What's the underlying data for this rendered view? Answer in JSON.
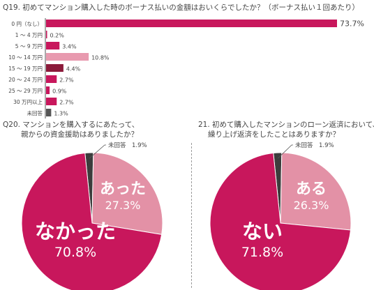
{
  "chart_data": [
    {
      "type": "bar",
      "orientation": "horizontal",
      "title": "Q19. 初めてマンション購入した時のボーナス払いの金額はおいくらでしたか？（ボーナス払い１回あたり）",
      "categories": [
        "0 円（なし）",
        "1 ～ 4 万円",
        "5 ～ 9 万円",
        "10 ～ 14 万円",
        "15 ～ 19 万円",
        "20 ～ 24 万円",
        "25 ～ 29 万円",
        "30 万円以上",
        "未回答"
      ],
      "values": [
        73.7,
        0.2,
        3.4,
        10.8,
        4.4,
        2.7,
        0.9,
        2.7,
        1.3
      ],
      "value_labels": [
        "73.7%",
        "0.2%",
        "3.4%",
        "10.8%",
        "4.4%",
        "2.7%",
        "0.9%",
        "2.7%",
        "1.3%"
      ],
      "bar_colors": [
        "#c8175c",
        "#c8175c",
        "#c8175c",
        "#e89aaf",
        "#8b1a3a",
        "#c8175c",
        "#c8175c",
        "#c8175c",
        "#555555"
      ],
      "xlim": [
        0,
        73.7
      ],
      "grid": false
    },
    {
      "type": "pie",
      "title": "Q20. マンションを購入するにあたって、親からの資金援助はありましたか？",
      "labels": [
        "なかった",
        "あった",
        "未回答"
      ],
      "values": [
        70.8,
        27.3,
        1.9
      ],
      "value_labels": [
        "70.8%",
        "27.3%",
        "1.9%"
      ],
      "colors": [
        "#c8175c",
        "#e391a6",
        "#3c3c3c"
      ]
    },
    {
      "type": "pie",
      "title": "21. 初めて購入したマンションのローン返済において、繰り上げ返済をしたことはありますか？",
      "labels": [
        "ない",
        "ある",
        "未回答"
      ],
      "values": [
        71.8,
        26.3,
        1.9
      ],
      "value_labels": [
        "71.8%",
        "26.3%",
        "1.9%"
      ],
      "colors": [
        "#c8175c",
        "#e391a6",
        "#3c3c3c"
      ]
    }
  ],
  "q20_title_lines": [
    "Q20. マンションを購入するにあたって、",
    "親からの資金援助はありましたか？"
  ],
  "q21_title_lines": [
    "21. 初めて購入したマンションのローン返済において、",
    "繰り上げ返済をしたことはありますか？"
  ]
}
